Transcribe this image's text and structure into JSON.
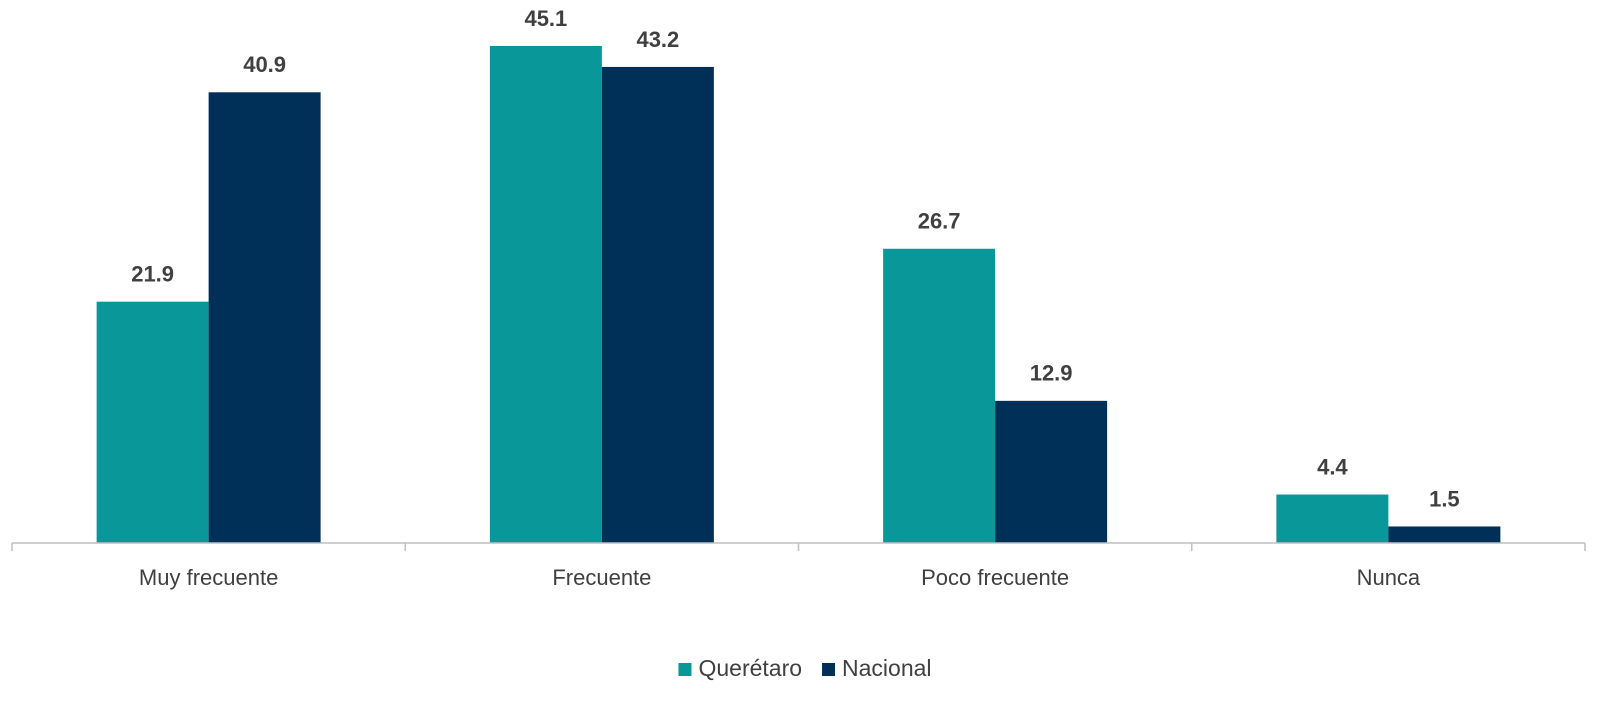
{
  "chart_data": {
    "type": "bar",
    "categories": [
      "Muy frecuente",
      "Frecuente",
      "Poco frecuente",
      "Nunca"
    ],
    "series": [
      {
        "name": "Querétaro",
        "color": "#0a9799",
        "values": [
          21.9,
          45.1,
          26.7,
          4.4
        ]
      },
      {
        "name": "Nacional",
        "color": "#003057",
        "values": [
          40.9,
          43.2,
          12.9,
          1.5
        ]
      }
    ],
    "legend": "bottom"
  }
}
